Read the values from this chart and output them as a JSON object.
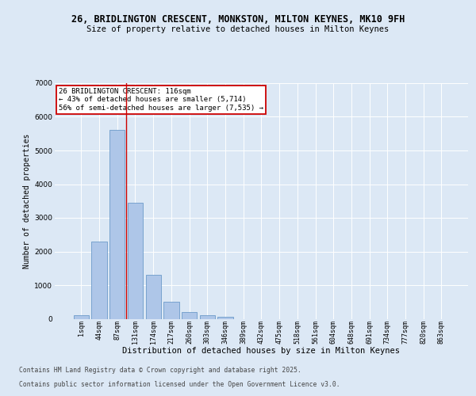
{
  "title_line1": "26, BRIDLINGTON CRESCENT, MONKSTON, MILTON KEYNES, MK10 9FH",
  "title_line2": "Size of property relative to detached houses in Milton Keynes",
  "xlabel": "Distribution of detached houses by size in Milton Keynes",
  "ylabel": "Number of detached properties",
  "categories": [
    "1sqm",
    "44sqm",
    "87sqm",
    "131sqm",
    "174sqm",
    "217sqm",
    "260sqm",
    "303sqm",
    "346sqm",
    "389sqm",
    "432sqm",
    "475sqm",
    "518sqm",
    "561sqm",
    "604sqm",
    "648sqm",
    "691sqm",
    "734sqm",
    "777sqm",
    "820sqm",
    "863sqm"
  ],
  "values": [
    100,
    2300,
    5600,
    3450,
    1310,
    510,
    195,
    105,
    60,
    0,
    0,
    0,
    0,
    0,
    0,
    0,
    0,
    0,
    0,
    0,
    0
  ],
  "bar_color": "#aec6e8",
  "bar_edge_color": "#5a8fc2",
  "vline_x_idx": 2,
  "vline_color": "#cc0000",
  "annotation_title": "26 BRIDLINGTON CRESCENT: 116sqm",
  "annotation_line2": "← 43% of detached houses are smaller (5,714)",
  "annotation_line3": "56% of semi-detached houses are larger (7,535) →",
  "annotation_box_color": "#cc0000",
  "ylim": [
    0,
    7000
  ],
  "yticks": [
    0,
    1000,
    2000,
    3000,
    4000,
    5000,
    6000,
    7000
  ],
  "bg_color": "#dce8f5",
  "plot_bg_color": "#dce8f5",
  "grid_color": "#ffffff",
  "footer_line1": "Contains HM Land Registry data © Crown copyright and database right 2025.",
  "footer_line2": "Contains public sector information licensed under the Open Government Licence v3.0."
}
